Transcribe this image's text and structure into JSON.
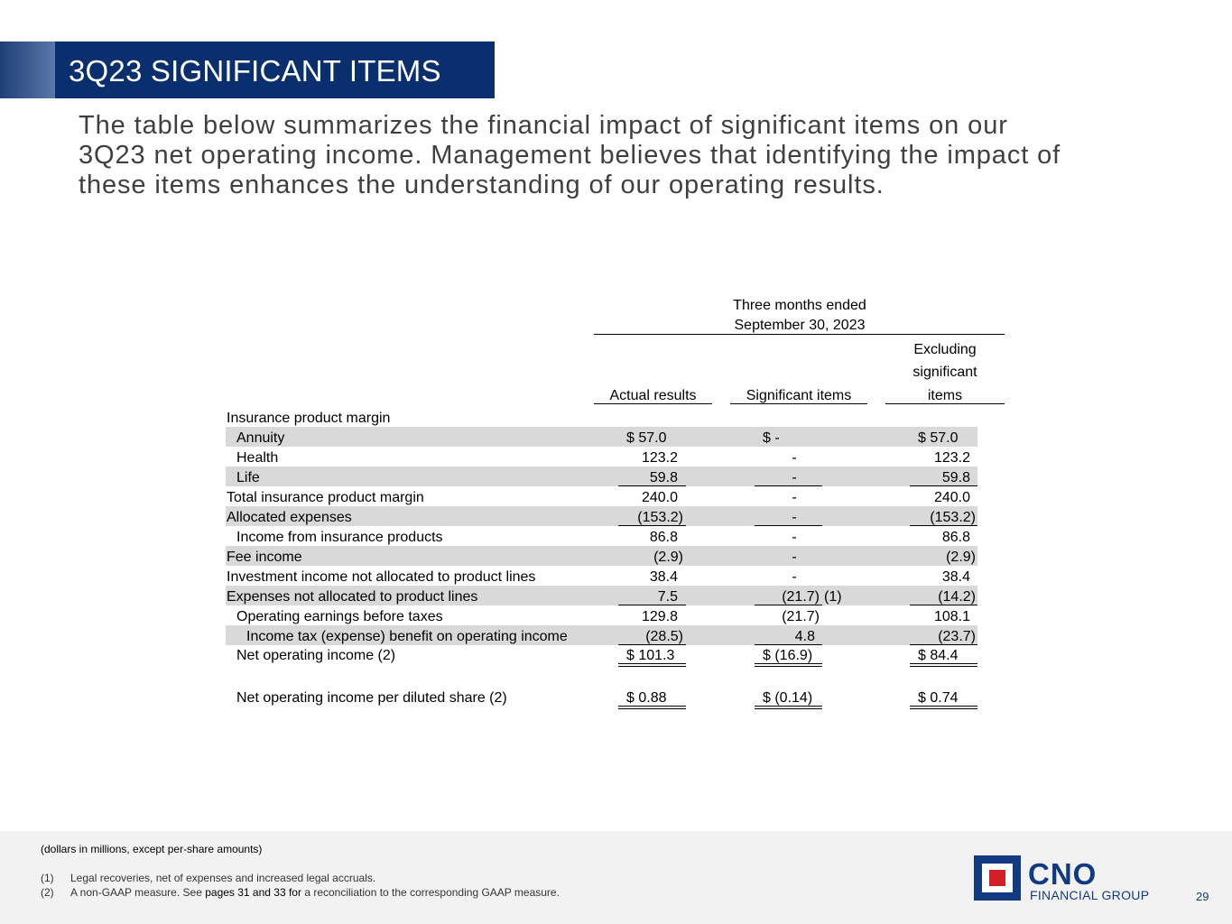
{
  "slide": {
    "title": "3Q23 SIGNIFICANT ITEMS",
    "intro_lines": [
      "The table below summarizes the financial impact of significant items on our",
      "3Q23 net operating income. Management believes that identifying the impact of",
      "these items enhances the understanding of our operating results."
    ]
  },
  "table": {
    "period_header_1": "Three months ended",
    "period_header_2": "September 30, 2023",
    "col_actual": "Actual results",
    "col_significant": "Significant items",
    "col_excluding_1": "Excluding",
    "col_excluding_2": "significant",
    "col_excluding_3": "items",
    "section_label": "Insurance product margin",
    "rows": [
      {
        "label": "Annuity",
        "actual": "$   57.0",
        "sig": "$     -",
        "excl": "$   57.0"
      },
      {
        "label": "Health",
        "actual": "123.2",
        "sig": "-",
        "excl": "123.2"
      },
      {
        "label": "Life",
        "actual": "59.8",
        "sig": "-",
        "excl": "59.8"
      },
      {
        "label": "Total insurance product margin",
        "actual": "240.0",
        "sig": "-",
        "excl": "240.0"
      },
      {
        "label": "Allocated expenses",
        "actual": "(153.2)",
        "sig": "-",
        "excl": "(153.2)"
      },
      {
        "label": "Income from insurance products",
        "actual": "86.8",
        "sig": "-",
        "excl": "86.8"
      },
      {
        "label": "Fee income",
        "actual": "(2.9)",
        "sig": "-",
        "excl": "(2.9)"
      },
      {
        "label": "Investment income not allocated to product lines",
        "actual": "38.4",
        "sig": "-",
        "excl": "38.4"
      },
      {
        "label": "Expenses not allocated to product lines",
        "actual": "7.5",
        "sig": "(21.7)",
        "sig_note": "(1)",
        "excl": "(14.2)"
      },
      {
        "label": "Operating earnings before taxes",
        "actual": "129.8",
        "sig": "(21.7)",
        "excl": "108.1"
      },
      {
        "label": "Income tax (expense) benefit on operating income",
        "actual": "(28.5)",
        "sig": "4.8",
        "excl": "(23.7)"
      },
      {
        "label": "Net operating income (2)",
        "actual": "$ 101.3",
        "sig": "$  (16.9)",
        "excl": "$   84.4"
      },
      {
        "label": "Net operating income per diluted share (2)",
        "actual": "$   0.88",
        "sig": "$  (0.14)",
        "excl": "$   0.74"
      }
    ]
  },
  "footer": {
    "units_note": "(dollars in millions, except per-share amounts)",
    "note1_num": "(1)",
    "note1_text": "Legal recoveries, net of expenses and increased legal accruals.",
    "note2_num": "(2)",
    "note2_pre": "A non-GAAP measure. See",
    "note2_link": "pages 31 and 33 for",
    "note2_post": "a reconciliation to the corresponding GAAP measure.",
    "page_number": "29"
  },
  "logo": {
    "name": "CNO",
    "subtitle": "FINANCIAL GROUP"
  },
  "colors": {
    "title_bar": "#0a2f6e",
    "band": "#d9d9d9",
    "logo_blue": "#123a82",
    "logo_red": "#d31f26"
  }
}
